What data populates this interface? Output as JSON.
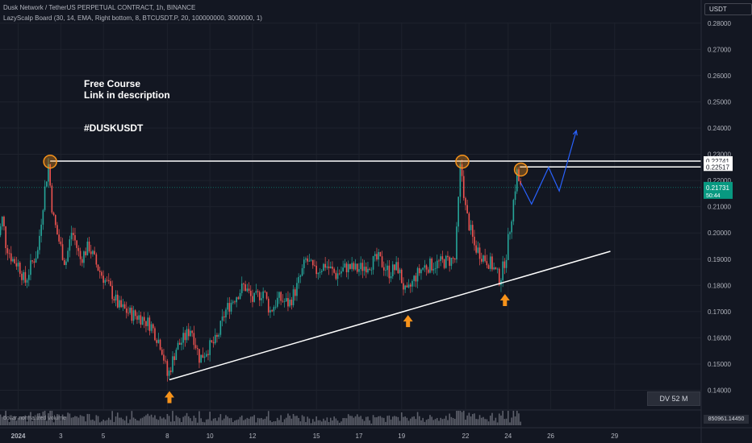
{
  "header": {
    "title": "Dusk Network / TetherUS PERPETUAL CONTRACT, 1h, BINANCE",
    "indicator": "LazyScalp Board (30, 14, EMA, Right bottom, 8, BTCUSDT.P, 20, 100000000, 3000000, 1)"
  },
  "currency": "USDT",
  "annotations": {
    "line1": "Free Course",
    "line2": "Link in description",
    "ticker": "#DUSKUSDT"
  },
  "dv_label": "DV 52 M",
  "volume": {
    "label": "dollar normalized volume",
    "value": "850961.14450"
  },
  "chart_data": {
    "type": "candlestick",
    "y_axis": {
      "min": 0.137,
      "max": 0.281,
      "ticks": [
        "0.28000",
        "0.27000",
        "0.26000",
        "0.25000",
        "0.24000",
        "0.23000",
        "0.22000",
        "0.21000",
        "0.20000",
        "0.19000",
        "0.18000",
        "0.17000",
        "0.16000",
        "0.15000",
        "0.14000"
      ]
    },
    "x_axis": {
      "ticks": [
        {
          "day": 1,
          "label": "2024"
        },
        {
          "day": 3,
          "label": "3"
        },
        {
          "day": 5,
          "label": "5"
        },
        {
          "day": 8,
          "label": "8"
        },
        {
          "day": 10,
          "label": "10"
        },
        {
          "day": 12,
          "label": "12"
        },
        {
          "day": 15,
          "label": "15"
        },
        {
          "day": 17,
          "label": "17"
        },
        {
          "day": 19,
          "label": "19"
        },
        {
          "day": 22,
          "label": "22"
        },
        {
          "day": 24,
          "label": "24"
        },
        {
          "day": 26,
          "label": "26"
        },
        {
          "day": 29,
          "label": "29"
        }
      ]
    },
    "price_path": [
      {
        "day": 0.0,
        "price": 0.197
      },
      {
        "day": 0.2,
        "price": 0.2
      },
      {
        "day": 0.35,
        "price": 0.206
      },
      {
        "day": 0.5,
        "price": 0.196
      },
      {
        "day": 0.8,
        "price": 0.19
      },
      {
        "day": 1.1,
        "price": 0.188
      },
      {
        "day": 1.4,
        "price": 0.181
      },
      {
        "day": 1.7,
        "price": 0.188
      },
      {
        "day": 2.0,
        "price": 0.193
      },
      {
        "day": 2.3,
        "price": 0.215
      },
      {
        "day": 2.5,
        "price": 0.226
      },
      {
        "day": 2.7,
        "price": 0.207
      },
      {
        "day": 2.9,
        "price": 0.2
      },
      {
        "day": 3.3,
        "price": 0.188
      },
      {
        "day": 3.6,
        "price": 0.201
      },
      {
        "day": 4.0,
        "price": 0.19
      },
      {
        "day": 4.4,
        "price": 0.195
      },
      {
        "day": 4.8,
        "price": 0.187
      },
      {
        "day": 5.3,
        "price": 0.18
      },
      {
        "day": 5.8,
        "price": 0.172
      },
      {
        "day": 6.4,
        "price": 0.169
      },
      {
        "day": 6.8,
        "price": 0.168
      },
      {
        "day": 7.3,
        "price": 0.165
      },
      {
        "day": 7.8,
        "price": 0.157
      },
      {
        "day": 8.1,
        "price": 0.145
      },
      {
        "day": 8.5,
        "price": 0.156
      },
      {
        "day": 8.9,
        "price": 0.16
      },
      {
        "day": 9.2,
        "price": 0.164
      },
      {
        "day": 9.6,
        "price": 0.152
      },
      {
        "day": 10.0,
        "price": 0.156
      },
      {
        "day": 10.4,
        "price": 0.159
      },
      {
        "day": 10.8,
        "price": 0.17
      },
      {
        "day": 11.2,
        "price": 0.175
      },
      {
        "day": 11.7,
        "price": 0.18
      },
      {
        "day": 12.1,
        "price": 0.174
      },
      {
        "day": 12.6,
        "price": 0.178
      },
      {
        "day": 12.9,
        "price": 0.17
      },
      {
        "day": 13.3,
        "price": 0.175
      },
      {
        "day": 13.8,
        "price": 0.173
      },
      {
        "day": 14.2,
        "price": 0.18
      },
      {
        "day": 14.6,
        "price": 0.19
      },
      {
        "day": 15.0,
        "price": 0.185
      },
      {
        "day": 15.5,
        "price": 0.188
      },
      {
        "day": 16.0,
        "price": 0.184
      },
      {
        "day": 16.5,
        "price": 0.187
      },
      {
        "day": 17.0,
        "price": 0.186
      },
      {
        "day": 17.5,
        "price": 0.188
      },
      {
        "day": 18.0,
        "price": 0.19
      },
      {
        "day": 18.5,
        "price": 0.185
      },
      {
        "day": 18.9,
        "price": 0.187
      },
      {
        "day": 19.3,
        "price": 0.176
      },
      {
        "day": 19.7,
        "price": 0.183
      },
      {
        "day": 20.1,
        "price": 0.187
      },
      {
        "day": 20.6,
        "price": 0.188
      },
      {
        "day": 21.1,
        "price": 0.189
      },
      {
        "day": 21.6,
        "price": 0.19
      },
      {
        "day": 21.85,
        "price": 0.227
      },
      {
        "day": 22.1,
        "price": 0.208
      },
      {
        "day": 22.5,
        "price": 0.195
      },
      {
        "day": 22.9,
        "price": 0.191
      },
      {
        "day": 23.3,
        "price": 0.188
      },
      {
        "day": 23.7,
        "price": 0.182
      },
      {
        "day": 24.0,
        "price": 0.192
      },
      {
        "day": 24.3,
        "price": 0.21
      },
      {
        "day": 24.5,
        "price": 0.223
      },
      {
        "day": 24.65,
        "price": 0.2173
      }
    ],
    "current_price": {
      "value": "0.21731",
      "countdown": "50:44"
    },
    "levels": [
      {
        "value": 0.22741,
        "label": "0.22741"
      },
      {
        "value": 0.22517,
        "label": "0.22517"
      }
    ],
    "trendline": {
      "from": {
        "day": 8.1,
        "price": 0.144
      },
      "to": {
        "day": 28.8,
        "price": 0.193
      }
    },
    "projection": [
      {
        "day": 24.6,
        "price": 0.219
      },
      {
        "day": 25.1,
        "price": 0.211
      },
      {
        "day": 25.9,
        "price": 0.225
      },
      {
        "day": 26.4,
        "price": 0.216
      },
      {
        "day": 27.2,
        "price": 0.239
      }
    ],
    "highs_marked": [
      {
        "day": 2.5,
        "price": 0.2275
      },
      {
        "day": 21.85,
        "price": 0.2275
      },
      {
        "day": 24.6,
        "price": 0.2245
      }
    ],
    "lows_marked": [
      {
        "day": 8.1,
        "price": 0.144
      },
      {
        "day": 19.3,
        "price": 0.173
      },
      {
        "day": 23.85,
        "price": 0.181
      }
    ],
    "colors": {
      "up": "#26a69a",
      "down": "#ef5350",
      "background": "#131722",
      "grid": "#1e222d",
      "lines": "#ffffff",
      "projection": "#2962ff",
      "markers": "#f7931a",
      "current_price": "#089981"
    }
  }
}
